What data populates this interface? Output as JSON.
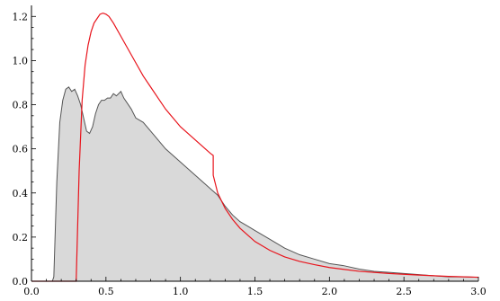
{
  "chart_data": {
    "type": "area",
    "title": "",
    "xlabel": "",
    "ylabel": "",
    "xlim": [
      0,
      3.0
    ],
    "ylim": [
      0,
      1.25
    ],
    "grid": false,
    "x_ticks": [
      {
        "value": 0.0,
        "label": "0.0"
      },
      {
        "value": 0.5,
        "label": "0.5"
      },
      {
        "value": 1.0,
        "label": "1.0"
      },
      {
        "value": 1.5,
        "label": "1.5"
      },
      {
        "value": 2.0,
        "label": "2.0"
      },
      {
        "value": 2.5,
        "label": "2.5"
      },
      {
        "value": 3.0,
        "label": "3.0"
      }
    ],
    "y_ticks": [
      {
        "value": 0.0,
        "label": "0.0"
      },
      {
        "value": 0.2,
        "label": "0.2"
      },
      {
        "value": 0.4,
        "label": "0.4"
      },
      {
        "value": 0.6,
        "label": "0.6"
      },
      {
        "value": 0.8,
        "label": "0.8"
      },
      {
        "value": 1.0,
        "label": "1.0"
      },
      {
        "value": 1.2,
        "label": "1.2"
      }
    ],
    "series": [
      {
        "type": "area",
        "color": "#555555",
        "fill": "#d9d9d9",
        "x": [
          0,
          0.14,
          0.15,
          0.17,
          0.19,
          0.21,
          0.23,
          0.25,
          0.27,
          0.29,
          0.31,
          0.33,
          0.35,
          0.37,
          0.39,
          0.41,
          0.43,
          0.45,
          0.47,
          0.49,
          0.51,
          0.53,
          0.55,
          0.57,
          0.6,
          0.62,
          0.64,
          0.67,
          0.7,
          0.75,
          0.8,
          0.85,
          0.9,
          0.95,
          1.0,
          1.05,
          1.1,
          1.15,
          1.2,
          1.25,
          1.3,
          1.35,
          1.4,
          1.45,
          1.5,
          1.6,
          1.7,
          1.8,
          1.9,
          2.0,
          2.1,
          2.2,
          2.3,
          2.4,
          2.5,
          2.6,
          2.7,
          2.8,
          2.9,
          3.0
        ],
        "values": [
          0,
          0,
          0.02,
          0.45,
          0.72,
          0.82,
          0.87,
          0.88,
          0.86,
          0.87,
          0.84,
          0.8,
          0.74,
          0.68,
          0.67,
          0.7,
          0.76,
          0.8,
          0.82,
          0.82,
          0.83,
          0.83,
          0.85,
          0.84,
          0.86,
          0.83,
          0.81,
          0.78,
          0.74,
          0.72,
          0.68,
          0.64,
          0.6,
          0.57,
          0.54,
          0.51,
          0.48,
          0.45,
          0.42,
          0.39,
          0.34,
          0.3,
          0.27,
          0.25,
          0.23,
          0.19,
          0.15,
          0.12,
          0.1,
          0.08,
          0.07,
          0.055,
          0.045,
          0.04,
          0.035,
          0.03,
          0.025,
          0.02,
          0.02,
          0.018
        ]
      },
      {
        "type": "line",
        "color": "#e8141c",
        "x": [
          0,
          0.3,
          0.32,
          0.34,
          0.36,
          0.38,
          0.4,
          0.42,
          0.44,
          0.46,
          0.48,
          0.5,
          0.52,
          0.55,
          0.6,
          0.65,
          0.7,
          0.75,
          0.8,
          0.85,
          0.9,
          0.95,
          1.0,
          1.05,
          1.1,
          1.15,
          1.2,
          1.22,
          1.22,
          1.25,
          1.3,
          1.35,
          1.4,
          1.5,
          1.6,
          1.7,
          1.8,
          1.9,
          2.0,
          2.2,
          2.4,
          2.6,
          2.8,
          3.0
        ],
        "values": [
          0,
          0,
          0.5,
          0.82,
          0.98,
          1.07,
          1.13,
          1.17,
          1.19,
          1.21,
          1.215,
          1.21,
          1.2,
          1.17,
          1.11,
          1.05,
          0.99,
          0.93,
          0.88,
          0.83,
          0.78,
          0.74,
          0.7,
          0.67,
          0.64,
          0.61,
          0.58,
          0.57,
          0.48,
          0.4,
          0.33,
          0.28,
          0.24,
          0.18,
          0.14,
          0.11,
          0.09,
          0.075,
          0.062,
          0.045,
          0.035,
          0.028,
          0.022,
          0.018
        ]
      }
    ]
  }
}
